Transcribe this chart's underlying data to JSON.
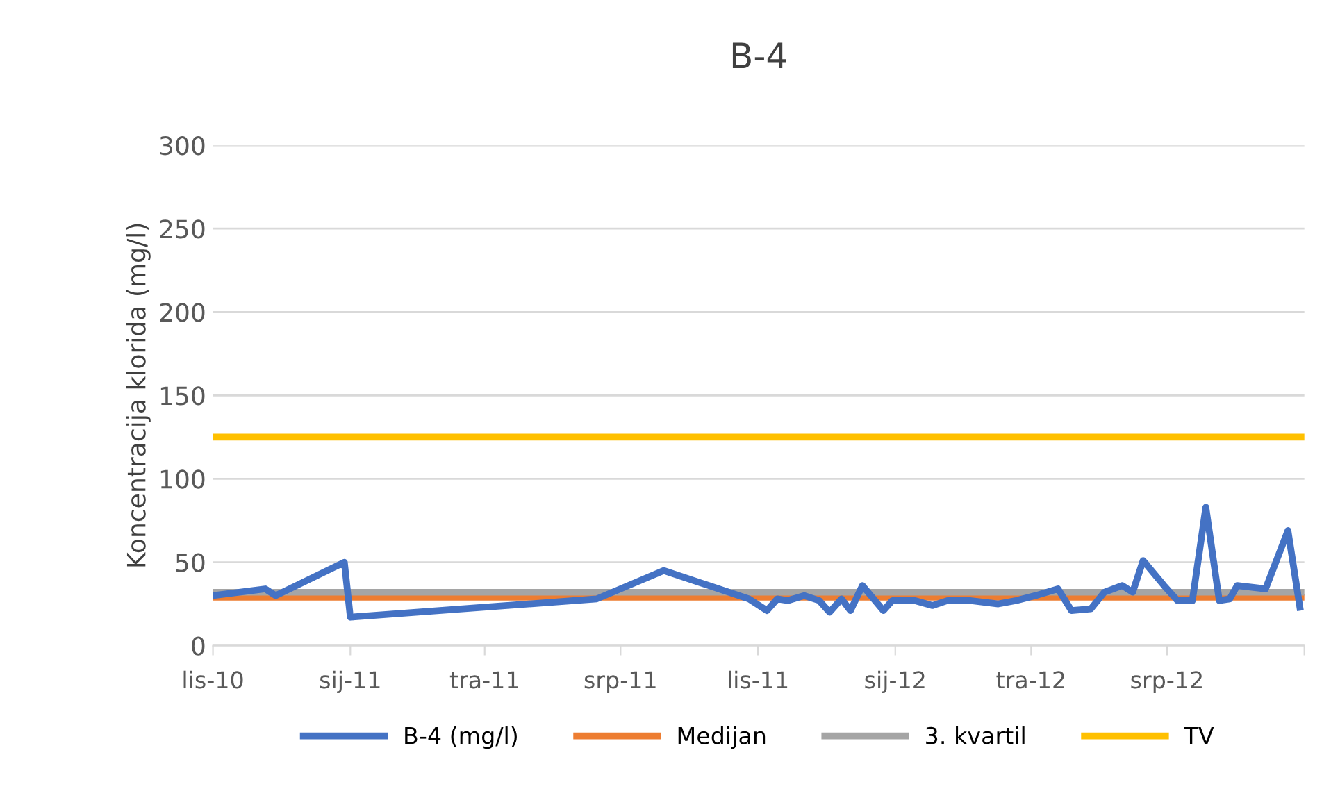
{
  "chart_data": {
    "type": "line",
    "title": "B-4",
    "ylabel": "Koncentracija klorida (mg/l)",
    "xlim": [
      "2010-10-01",
      "2012-10-01"
    ],
    "xticks": [
      {
        "value": "2010-10-01",
        "label": "lis-10"
      },
      {
        "value": "2011-01-01",
        "label": "sij-11"
      },
      {
        "value": "2011-04-01",
        "label": "tra-11"
      },
      {
        "value": "2011-07-01",
        "label": "srp-11"
      },
      {
        "value": "2011-10-01",
        "label": "lis-11"
      },
      {
        "value": "2012-01-01",
        "label": "sij-12"
      },
      {
        "value": "2012-04-01",
        "label": "tra-12"
      },
      {
        "value": "2012-07-01",
        "label": "srp-12"
      },
      {
        "value": "2012-10-01",
        "label": null
      }
    ],
    "ylim": [
      0,
      300
    ],
    "yticks": [
      0,
      50,
      100,
      150,
      200,
      250,
      300
    ],
    "grid": "y",
    "legend": "bottom",
    "marker": "none",
    "line_style": "solid",
    "series": [
      {
        "name": "B-4 (mg/l)",
        "color": "#4472c4",
        "x": [
          "2010-10-01",
          "2010-11-05",
          "2010-11-12",
          "2010-12-28",
          "2011-01-01",
          "2011-06-15",
          "2011-07-30",
          "2011-09-25",
          "2011-10-07",
          "2011-10-14",
          "2011-10-21",
          "2011-11-01",
          "2011-11-11",
          "2011-11-18",
          "2011-11-26",
          "2011-12-02",
          "2011-12-10",
          "2011-12-24",
          "2011-12-30",
          "2012-01-14",
          "2012-01-26",
          "2012-02-05",
          "2012-02-20",
          "2012-03-10",
          "2012-03-22",
          "2012-04-04",
          "2012-04-19",
          "2012-04-28",
          "2012-05-11",
          "2012-05-20",
          "2012-06-01",
          "2012-06-08",
          "2012-06-15",
          "2012-06-29",
          "2012-07-08",
          "2012-07-18",
          "2012-07-27",
          "2012-08-05",
          "2012-08-12",
          "2012-08-17",
          "2012-09-05",
          "2012-09-20",
          "2012-09-28"
        ],
        "values": [
          30,
          34,
          30,
          50,
          17,
          28,
          45,
          28,
          21,
          28,
          27,
          30,
          27,
          20,
          28,
          21,
          36,
          21,
          27,
          27,
          24,
          27,
          27,
          25,
          27,
          30,
          34,
          21,
          22,
          32,
          36,
          32,
          51,
          36,
          27,
          27,
          83,
          27,
          28,
          36,
          34,
          69,
          23
        ]
      },
      {
        "name": "Medijan",
        "color": "#ed7d31",
        "x": [
          "2010-10-01",
          "2012-10-01"
        ],
        "values": [
          29,
          29
        ]
      },
      {
        "name": "3. kvartil",
        "color": "#a5a5a5",
        "x": [
          "2010-10-01",
          "2012-10-01"
        ],
        "values": [
          32,
          32
        ]
      },
      {
        "name": "TV",
        "color": "#ffc000",
        "x": [
          "2010-10-01",
          "2012-10-01"
        ],
        "values": [
          125,
          125
        ]
      }
    ]
  }
}
